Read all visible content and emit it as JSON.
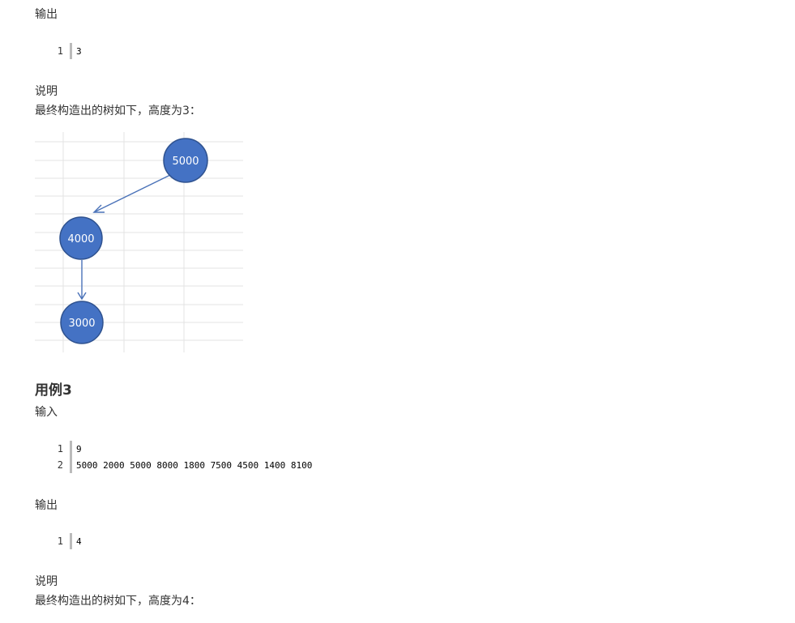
{
  "example2": {
    "output_label": "输出",
    "output_lines": [
      {
        "num": "1",
        "text": "3"
      }
    ],
    "explain_label": "说明",
    "explain_text": "最终构造出的树如下，高度为3："
  },
  "tree_figure": {
    "nodes": [
      "5000",
      "4000",
      "3000"
    ],
    "node_color": "#4472c4"
  },
  "example3": {
    "heading": "用例3",
    "input_label": "输入",
    "input_lines": [
      {
        "num": "1",
        "text": "9"
      },
      {
        "num": "2",
        "text": "5000 2000 5000 8000 1800 7500 4500 1400 8100"
      }
    ],
    "output_label": "输出",
    "output_lines": [
      {
        "num": "1",
        "text": "4"
      }
    ],
    "explain_label": "说明",
    "explain_text": "最终构造出的树如下，高度为4："
  }
}
